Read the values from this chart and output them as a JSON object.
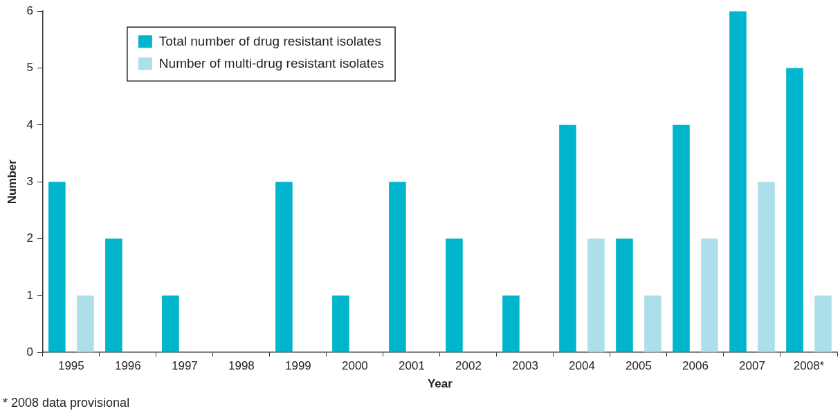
{
  "chart_data": {
    "type": "bar",
    "xlabel": "Year",
    "ylabel": "Number",
    "categories": [
      "1995",
      "1996",
      "1997",
      "1998",
      "1999",
      "2000",
      "2001",
      "2002",
      "2003",
      "2004",
      "2005",
      "2006",
      "2007",
      "2008*"
    ],
    "series": [
      {
        "name": "Total number of drug resistant isolates",
        "color": "#00b5cc",
        "values": [
          3,
          2,
          1,
          0,
          3,
          1,
          3,
          2,
          1,
          4,
          2,
          4,
          6,
          5
        ]
      },
      {
        "name": "Number of multi-drug resistant isolates",
        "color": "#acdfea",
        "values": [
          1,
          0,
          0,
          0,
          0,
          0,
          0,
          0,
          0,
          2,
          1,
          2,
          3,
          1
        ]
      }
    ],
    "ylim": [
      0,
      6
    ],
    "yticks": [
      0,
      1,
      2,
      3,
      4,
      5,
      6
    ],
    "grid": false,
    "legend": "top left",
    "annotations": [
      "* 2008 data provisional"
    ]
  }
}
